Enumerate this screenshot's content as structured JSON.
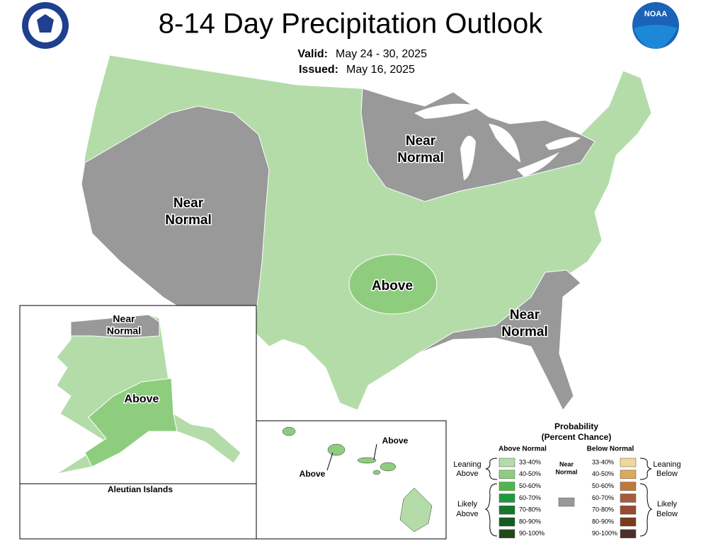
{
  "header": {
    "title": "8-14 Day Precipitation Outlook",
    "valid_label": "Valid:",
    "valid": "May 24 - 30, 2025",
    "issued_label": "Issued:",
    "issued": "May 16, 2025",
    "logo": "NOAA"
  },
  "conus": {
    "labels": [
      {
        "lines": [
          "Near",
          "Normal"
        ]
      },
      {
        "lines": [
          "Near",
          "Normal"
        ]
      },
      {
        "lines": [
          "Above"
        ]
      },
      {
        "lines": [
          "Near",
          "Normal"
        ]
      }
    ]
  },
  "alaska": {
    "labels": [
      {
        "lines": [
          "Near",
          "Normal"
        ]
      },
      {
        "lines": [
          "Above"
        ]
      }
    ],
    "aleutian": "Aleutian Islands"
  },
  "hawaii": {
    "labels": [
      "Above",
      "Above"
    ]
  },
  "legend": {
    "title": [
      "Probability",
      "(Percent Chance)"
    ],
    "above_header": "Above Normal",
    "below_header": "Below Normal",
    "near": {
      "lines": [
        "Near",
        "Normal"
      ],
      "color": "#999999"
    },
    "leaning_above": [
      "Leaning",
      "Above"
    ],
    "likely_above": [
      "Likely",
      "Above"
    ],
    "leaning_below": [
      "Leaning",
      "Below"
    ],
    "likely_below": [
      "Likely",
      "Below"
    ],
    "above": [
      {
        "label": "33-40%",
        "color": "#b3dca9"
      },
      {
        "label": "40-50%",
        "color": "#8fcd7e"
      },
      {
        "label": "50-60%",
        "color": "#4cb847"
      },
      {
        "label": "60-70%",
        "color": "#1b9b3a"
      },
      {
        "label": "70-80%",
        "color": "#13792b"
      },
      {
        "label": "80-90%",
        "color": "#155c20"
      },
      {
        "label": "90-100%",
        "color": "#22471b"
      }
    ],
    "below": [
      {
        "label": "33-40%",
        "color": "#f1d896"
      },
      {
        "label": "40-50%",
        "color": "#dca95a"
      },
      {
        "label": "50-60%",
        "color": "#c0783a"
      },
      {
        "label": "60-70%",
        "color": "#a85b3b"
      },
      {
        "label": "70-80%",
        "color": "#994a33"
      },
      {
        "label": "80-90%",
        "color": "#7a3b1b"
      },
      {
        "label": "90-100%",
        "color": "#4b3028"
      }
    ]
  }
}
